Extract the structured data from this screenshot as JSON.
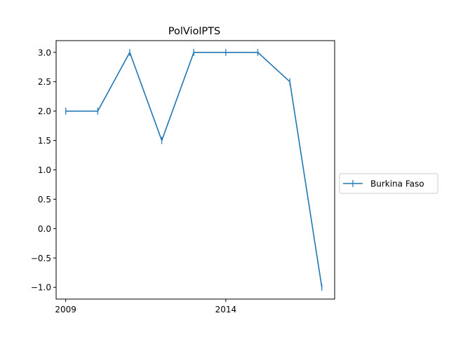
{
  "chart_data": {
    "type": "line",
    "title": "PolViolPTS",
    "xlabel": "",
    "ylabel": "",
    "x": [
      2009,
      2010,
      2011,
      2012,
      2013,
      2014,
      2015,
      2016,
      2017
    ],
    "series": [
      {
        "name": "Burkina Faso",
        "color": "#1f77b4",
        "marker": "vertical-tick",
        "values": [
          2.0,
          2.0,
          3.0,
          1.5,
          3.0,
          3.0,
          3.0,
          2.5,
          -1.0
        ]
      }
    ],
    "xlim": [
      2008.7,
      2017.4
    ],
    "ylim": [
      -1.2,
      3.2
    ],
    "x_ticks": [
      2009,
      2014
    ],
    "x_tick_labels": [
      "2009",
      "2014"
    ],
    "y_ticks": [
      -1.0,
      -0.5,
      0.0,
      0.5,
      1.0,
      1.5,
      2.0,
      2.5,
      3.0
    ],
    "y_tick_labels": [
      "−1.0",
      "−0.5",
      "0.0",
      "0.5",
      "1.0",
      "1.5",
      "2.0",
      "2.5",
      "3.0"
    ],
    "grid": false,
    "legend_position": "outside-right"
  }
}
